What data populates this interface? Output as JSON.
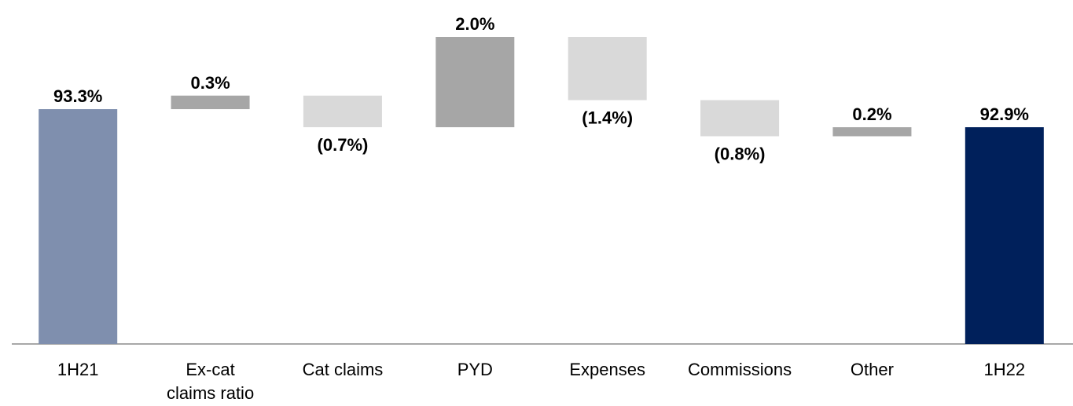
{
  "chart_data": {
    "type": "waterfall",
    "categories": [
      "1H21",
      "Ex-cat claims ratio",
      "Cat claims",
      "PYD",
      "Expenses",
      "Commissions",
      "Other",
      "1H22"
    ],
    "values": [
      93.3,
      0.3,
      -0.7,
      2.0,
      -1.4,
      -0.8,
      0.2,
      92.9
    ],
    "value_labels": [
      "93.3%",
      "0.3%",
      "(0.7%)",
      "2.0%",
      "(1.4%)",
      "(0.8%)",
      "0.2%",
      "92.9%"
    ],
    "measure": [
      "absolute",
      "relative",
      "relative",
      "relative",
      "relative",
      "relative",
      "relative",
      "total"
    ],
    "colors": [
      "#7f8fae",
      "#a6a6a6",
      "#d9d9d9",
      "#a6a6a6",
      "#d9d9d9",
      "#d9d9d9",
      "#a6a6a6",
      "#00205b"
    ],
    "ylim": [
      88.1,
      95.7
    ]
  }
}
